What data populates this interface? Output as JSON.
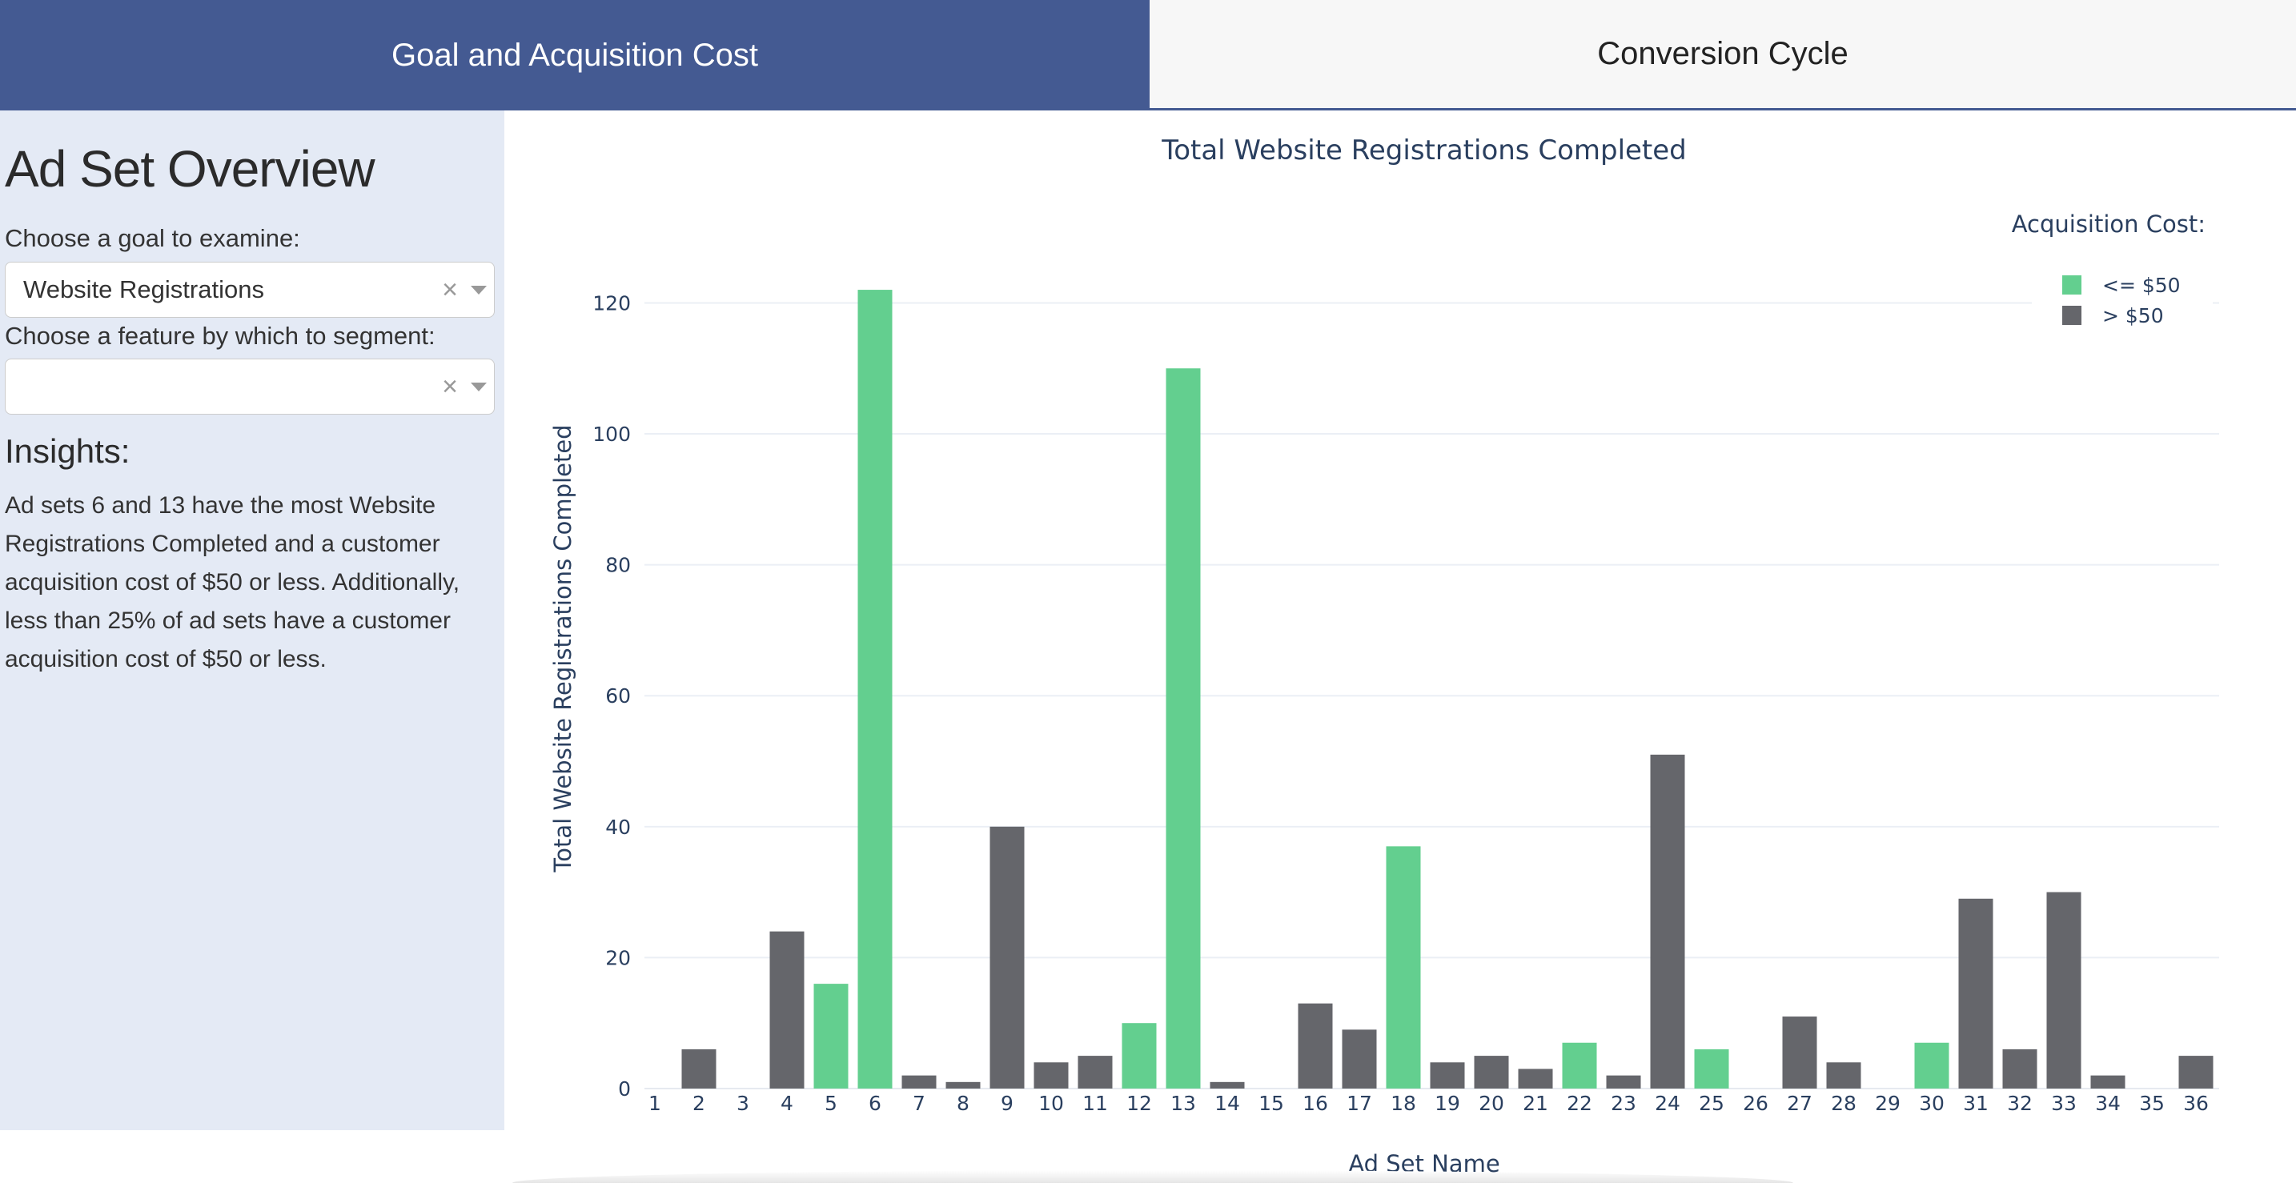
{
  "tabs": [
    {
      "label": "Goal and Acquisition Cost",
      "active": true
    },
    {
      "label": "Conversion Cycle",
      "active": false
    }
  ],
  "sidebar": {
    "title": "Ad Set Overview",
    "goal_label": "Choose a goal to examine:",
    "goal_value": "Website Registrations",
    "segment_label": "Choose a feature by which to segment:",
    "segment_value": "",
    "clear_glyph": "×",
    "insights_title": "Insights:",
    "insights_text": "Ad sets 6 and 13 have the most Website Registrations Completed and a customer acquisition cost of $50 or less. Additionally, less than 25% of ad sets have a customer acquisition cost of $50 or less."
  },
  "colors": {
    "accent": "#445a92",
    "sidebar_bg": "#e4eaf5",
    "low_cost": "#63cf8f",
    "high_cost": "#65666b",
    "text_dark": "#2a3f5f"
  },
  "chart_data": {
    "type": "bar",
    "title": "Total Website Registrations Completed",
    "xlabel": "Ad Set Name",
    "ylabel": "Total Website Registrations Completed",
    "ylim": [
      0,
      128
    ],
    "yticks": [
      0,
      20,
      40,
      60,
      80,
      100,
      120
    ],
    "grid": true,
    "legend": {
      "title": "Acquisition Cost:",
      "placement": "top-right",
      "entries": [
        {
          "name": "<= $50",
          "color": "#63cf8f"
        },
        {
          "name": "> $50",
          "color": "#65666b"
        }
      ]
    },
    "categories": [
      "1",
      "2",
      "3",
      "4",
      "5",
      "6",
      "7",
      "8",
      "9",
      "10",
      "11",
      "12",
      "13",
      "14",
      "15",
      "16",
      "17",
      "18",
      "19",
      "20",
      "21",
      "22",
      "23",
      "24",
      "25",
      "26",
      "27",
      "28",
      "29",
      "30",
      "31",
      "32",
      "33",
      "34",
      "35",
      "36"
    ],
    "values": [
      0,
      6,
      0,
      24,
      16,
      122,
      2,
      1,
      40,
      4,
      5,
      10,
      110,
      1,
      0,
      13,
      9,
      37,
      4,
      5,
      3,
      7,
      2,
      51,
      6,
      0,
      11,
      4,
      0,
      7,
      29,
      6,
      30,
      2,
      0,
      5
    ],
    "cost_group": [
      ">",
      ">",
      ">",
      ">",
      "<=",
      "<=",
      ">",
      ">",
      ">",
      ">",
      ">",
      "<=",
      "<=",
      ">",
      ">",
      ">",
      ">",
      "<=",
      ">",
      ">",
      ">",
      "<=",
      ">",
      ">",
      "<=",
      ">",
      ">",
      ">",
      ">",
      "<=",
      ">",
      ">",
      ">",
      ">",
      ">",
      ">"
    ]
  }
}
